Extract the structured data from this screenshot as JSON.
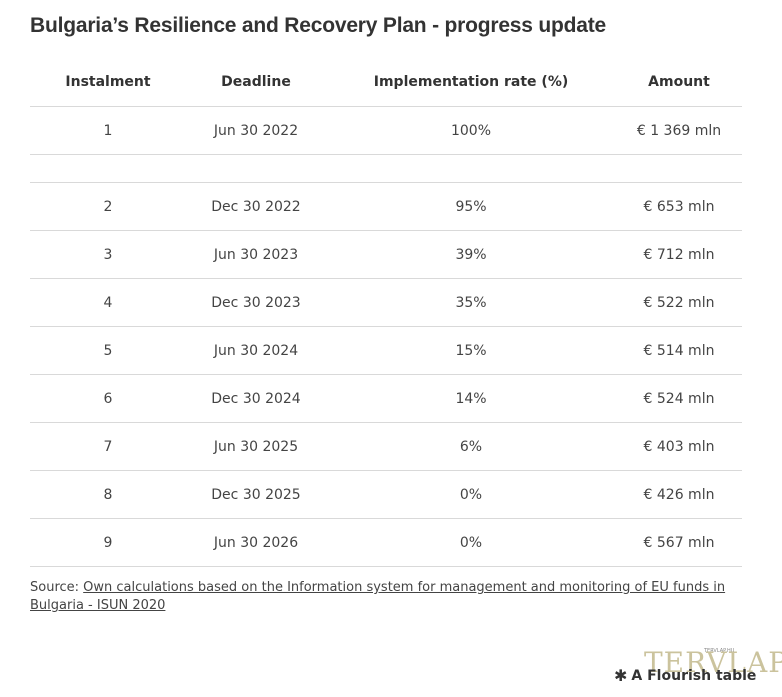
{
  "chart_data": {
    "type": "table",
    "title": "Bulgaria’s Resilience and Recovery Plan - progress update",
    "columns": [
      "Instalment",
      "Deadline",
      "Implementation rate (%)",
      "Amount"
    ],
    "rows": [
      [
        "1",
        "Jun 30 2022",
        "100%",
        "€ 1 369 mln"
      ],
      [
        "",
        "",
        "",
        ""
      ],
      [
        "2",
        "Dec 30 2022",
        "95%",
        "€ 653 mln"
      ],
      [
        "3",
        "Jun 30 2023",
        "39%",
        "€ 712 mln"
      ],
      [
        "4",
        "Dec 30 2023",
        "35%",
        "€ 522 mln"
      ],
      [
        "5",
        "Jun 30 2024",
        "15%",
        "€ 514 mln"
      ],
      [
        "6",
        "Dec 30 2024",
        "14%",
        "€ 524 mln"
      ],
      [
        "7",
        "Jun 30 2025",
        "6%",
        "€ 403 mln"
      ],
      [
        "8",
        "Dec 30 2025",
        "0%",
        "€ 426 mln"
      ],
      [
        "9",
        "Jun 30 2026",
        "0%",
        "€ 567 mln"
      ]
    ]
  },
  "footer": {
    "source_prefix": "Source: ",
    "source_link": "Own calculations based on the Information system for management and monitoring of EU funds in Bulgaria - ISUN 2020",
    "watermark": "TERVLAP",
    "watermark_small": "TERVLAP.HU",
    "flourish_label": "A Flourish table",
    "flourish_icon": "asterisk-icon"
  },
  "colors": {
    "text": "#333333",
    "rule": "#d9d9d9",
    "watermark": "#c2b98c"
  }
}
